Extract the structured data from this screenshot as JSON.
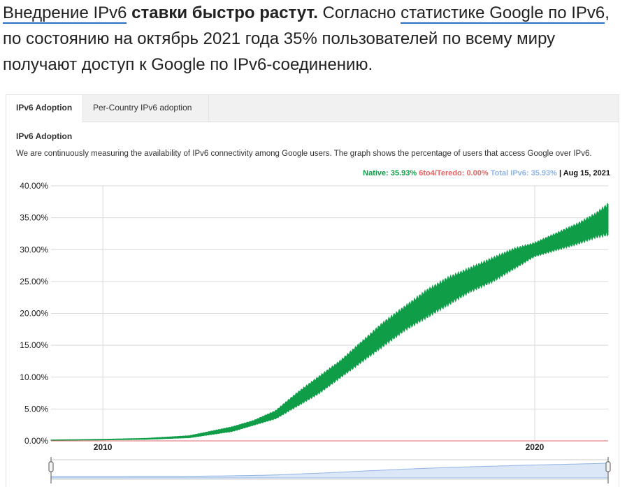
{
  "article": {
    "link1": "Внедрение IPv6",
    "bold": " ставки быстро растут.",
    "text1": " Согласно ",
    "link2": "статистике Google по IPv6",
    "text2": ", по состоянию на октябрь 2021 года 35% пользователей по всему миру получают доступ к Google по IPv6-соединению."
  },
  "tabs": [
    "IPv6 Adoption",
    "Per-Country IPv6 adoption"
  ],
  "section": {
    "title": "IPv6 Adoption",
    "description": "We are continuously measuring the availability of IPv6 connectivity among Google users. The graph shows the percentage of users that access Google over IPv6."
  },
  "legend": {
    "native": "Native: 35.93%",
    "teredo": "6to4/Teredo: 0.00%",
    "total": "Total IPv6: 35.93%",
    "separator": " | ",
    "date": "Aug 15, 2021"
  },
  "colors": {
    "native": "#0f9d48",
    "teredo": "#e06666",
    "total": "#8fb4e3",
    "grid": "#d9d9d9"
  },
  "chart_data": {
    "type": "area",
    "title": "IPv6 Adoption",
    "xlabel": "",
    "ylabel": "",
    "ylim": [
      0,
      40
    ],
    "xlim": [
      2008.8,
      2021.7
    ],
    "yticks": [
      "0.00%",
      "5.00%",
      "10.00%",
      "15.00%",
      "20.00%",
      "25.00%",
      "30.00%",
      "35.00%",
      "40.00%"
    ],
    "xticks": [
      "2010",
      "2020"
    ],
    "grid": true,
    "legend_position": "top-right",
    "series": [
      {
        "name": "Native",
        "x": [
          2008.8,
          2010.0,
          2011.0,
          2012.0,
          2013.0,
          2013.5,
          2014.0,
          2014.5,
          2015.0,
          2015.5,
          2016.0,
          2016.5,
          2017.0,
          2017.5,
          2018.0,
          2018.5,
          2019.0,
          2019.5,
          2020.0,
          2020.5,
          2021.0,
          2021.4,
          2021.7
        ],
        "low": [
          0.1,
          0.15,
          0.25,
          0.5,
          1.5,
          2.5,
          3.5,
          5.5,
          7.5,
          10,
          12.5,
          15,
          17.5,
          19.5,
          21.5,
          23.5,
          25,
          27,
          29,
          30,
          31,
          32,
          32.5
        ],
        "high": [
          0.15,
          0.25,
          0.4,
          0.8,
          2.2,
          3.2,
          4.7,
          7.5,
          10,
          12.5,
          15.5,
          18.5,
          21,
          23.5,
          25.5,
          27,
          28.5,
          30,
          31,
          32.5,
          34,
          35.5,
          37
        ]
      },
      {
        "name": "6to4/Teredo",
        "x": [
          2008.8,
          2021.7
        ],
        "values": [
          0.0,
          0.0
        ]
      }
    ]
  }
}
